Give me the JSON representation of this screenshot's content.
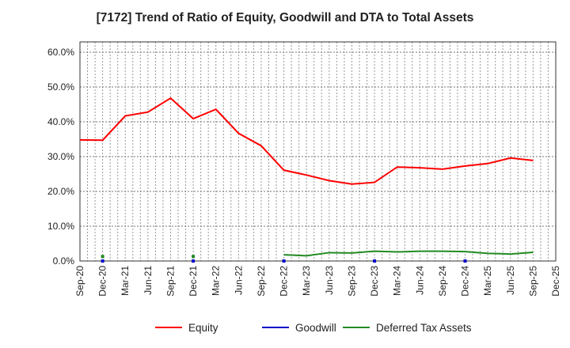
{
  "chart_data": {
    "type": "line",
    "title": "[7172]  Trend of Ratio of Equity, Goodwill and DTA to Total Assets",
    "xlabel": "",
    "ylabel": "",
    "ylim": [
      0,
      60
    ],
    "yticks": [
      "0.0%",
      "10.0%",
      "20.0%",
      "30.0%",
      "40.0%",
      "50.0%",
      "60.0%"
    ],
    "x": [
      "Sep-20",
      "Dec-20",
      "Mar-21",
      "Jun-21",
      "Sep-21",
      "Dec-21",
      "Mar-22",
      "Jun-22",
      "Sep-22",
      "Dec-22",
      "Mar-23",
      "Jun-23",
      "Sep-23",
      "Dec-23",
      "Mar-24",
      "Jun-24",
      "Sep-24",
      "Dec-24",
      "Mar-25",
      "Jun-25",
      "Sep-25",
      "Dec-25"
    ],
    "grid": true,
    "legend": "bottom",
    "series": [
      {
        "name": "Equity",
        "color": "#ff0000",
        "values": [
          34.8,
          34.7,
          41.7,
          42.8,
          46.8,
          40.9,
          43.6,
          36.7,
          33.1,
          26.1,
          24.7,
          23.1,
          22.1,
          22.6,
          27.0,
          26.8,
          26.4,
          27.3,
          28.0,
          29.6,
          28.9,
          null
        ]
      },
      {
        "name": "Goodwill",
        "color": "#0000cc",
        "values": [
          null,
          0.0,
          null,
          null,
          null,
          0.0,
          null,
          null,
          null,
          0.0,
          null,
          null,
          null,
          0.0,
          null,
          null,
          null,
          0.0,
          null,
          null,
          null,
          null
        ]
      },
      {
        "name": "Deferred Tax Assets",
        "color": "#228b22",
        "values": [
          null,
          1.3,
          null,
          null,
          null,
          1.3,
          null,
          null,
          null,
          1.8,
          1.5,
          2.4,
          2.3,
          2.8,
          2.6,
          2.8,
          2.8,
          2.7,
          2.2,
          2.0,
          2.5,
          null
        ]
      }
    ]
  }
}
